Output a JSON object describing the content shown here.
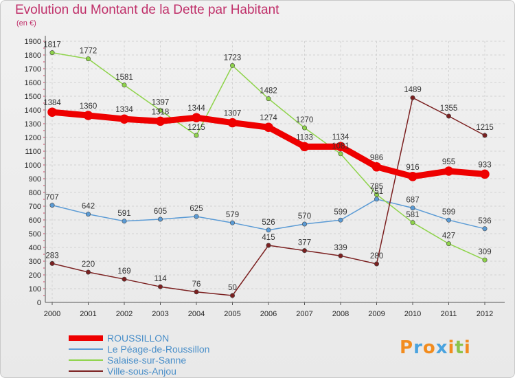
{
  "chart_data": {
    "type": "line",
    "title": "Evolution du Montant de la Dette par Habitant",
    "subtitle": "(en €)",
    "x": [
      "2000",
      "2001",
      "2002",
      "2003",
      "2004",
      "2005",
      "2006",
      "2007",
      "2008",
      "2009",
      "2010",
      "2011",
      "2012"
    ],
    "ylim": [
      0,
      1900
    ],
    "yticks": [
      0,
      100,
      200,
      300,
      400,
      500,
      600,
      700,
      800,
      900,
      1000,
      1100,
      1200,
      1300,
      1400,
      1500,
      1600,
      1700,
      1800,
      1900
    ],
    "grid": true,
    "legend_position": "bottom-left",
    "series": [
      {
        "name": "ROUSSILLON",
        "values": [
          1384,
          1360,
          1334,
          1318,
          1344,
          1307,
          1274,
          1133,
          1134,
          986,
          916,
          955,
          933
        ],
        "color": "#ee0000",
        "width": 9,
        "label_dy": [
          -10,
          -10,
          -10,
          -10,
          -10,
          -10,
          -10,
          -10,
          -10,
          -10,
          -10,
          -10,
          -10
        ]
      },
      {
        "name": "Le Péage-de-Roussillon",
        "values": [
          707,
          642,
          591,
          605,
          625,
          579,
          526,
          570,
          599,
          751,
          687,
          599,
          536
        ],
        "color": "#5b9bd5",
        "width": 1.5,
        "label_dy": [
          -8,
          -8,
          -8,
          -8,
          -8,
          -8,
          -8,
          -8,
          -8,
          -8,
          -8,
          -8,
          -8
        ]
      },
      {
        "name": "Salaise-sur-Sanne",
        "values": [
          1817,
          1772,
          1581,
          1397,
          1215,
          1723,
          1482,
          1270,
          1081,
          785,
          581,
          427,
          309
        ],
        "color": "#8ed34a",
        "width": 1.5,
        "label_dy": [
          -8,
          -8,
          -8,
          -8,
          -8,
          -8,
          -8,
          -8,
          -8,
          -8,
          -8,
          -8,
          -8
        ]
      },
      {
        "name": "Ville-sous-Anjou",
        "values": [
          283,
          220,
          169,
          114,
          76,
          50,
          415,
          377,
          339,
          280,
          1489,
          1355,
          1215
        ],
        "color": "#7b2020",
        "width": 1.5,
        "label_dy": [
          -8,
          -8,
          -8,
          -8,
          -8,
          -8,
          -8,
          -8,
          -8,
          -8,
          -8,
          -8,
          -8
        ]
      }
    ]
  },
  "logo": {
    "text": "Proxiti",
    "colors": [
      "#f28c1e",
      "#4aa3df",
      "#f28c1e",
      "#4aa3df",
      "#f28c1e",
      "#8bc34a",
      "#f28c1e"
    ]
  }
}
